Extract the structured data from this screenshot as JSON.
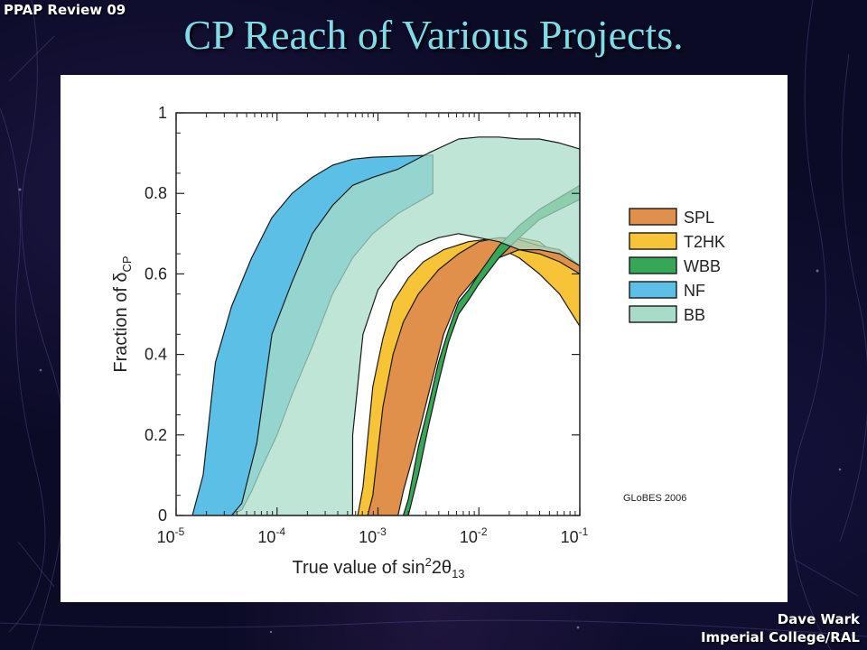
{
  "header": {
    "corner_label": "PPAP Review 09",
    "title": "CP Reach of Various Projects."
  },
  "footer": {
    "line1": "Dave Wark",
    "line2": "Imperial College/RAL"
  },
  "chart_data": {
    "type": "area",
    "title": "",
    "xlabel_prefix": "True value of sin",
    "xlabel_sup": "2",
    "xlabel_mid": "2θ",
    "xlabel_sub": "13",
    "ylabel_prefix": "Fraction of δ",
    "ylabel_sub": "CP",
    "x_scale": "log",
    "xlim": [
      1e-05,
      0.1
    ],
    "ylim": [
      0,
      1
    ],
    "x_tick_exponents": [
      "-5",
      "-4",
      "-3",
      "-2",
      "-1"
    ],
    "x_tick_base": "10",
    "y_ticks": [
      "0",
      "0.2",
      "0.4",
      "0.6",
      "0.8",
      "1"
    ],
    "credit": "GLoBES 2006",
    "legend_position": "right",
    "legend": [
      {
        "name": "SPL",
        "color": "#e0904a"
      },
      {
        "name": "T2HK",
        "color": "#f7c437"
      },
      {
        "name": "WBB",
        "color": "#36a657"
      },
      {
        "name": "NF",
        "color": "#5bbfe6"
      },
      {
        "name": "BB",
        "color": "#a8dcc8"
      }
    ],
    "bands": [
      {
        "name": "NF",
        "color": "#5bbfe6",
        "opacity": 1,
        "upper": [
          [
            1.45e-05,
            0
          ],
          [
            1.85e-05,
            0.1
          ],
          [
            2.45e-05,
            0.38
          ],
          [
            3.55e-05,
            0.52
          ],
          [
            5.6e-05,
            0.64
          ],
          [
            8.9e-05,
            0.74
          ],
          [
            0.000141,
            0.8
          ],
          [
            0.000224,
            0.84
          ],
          [
            0.000355,
            0.87
          ],
          [
            0.000562,
            0.885
          ],
          [
            0.00089,
            0.89
          ],
          [
            0.0035,
            0.895
          ]
        ],
        "lower": [
          [
            0.0035,
            0.8
          ],
          [
            0.00158,
            0.75
          ],
          [
            0.00089,
            0.7
          ],
          [
            0.000562,
            0.64
          ],
          [
            0.000355,
            0.55
          ],
          [
            0.000224,
            0.42
          ],
          [
            0.000141,
            0.3
          ],
          [
            0.0001,
            0.2
          ],
          [
            7.1e-05,
            0.12
          ],
          [
            5.6e-05,
            0.06
          ],
          [
            4.5e-05,
            0.015
          ],
          [
            3.55e-05,
            0
          ]
        ]
      },
      {
        "name": "T2HK",
        "color": "#f7c437",
        "opacity": 1,
        "upper": [
          [
            0.00063,
            0
          ],
          [
            0.00071,
            0.07
          ],
          [
            0.00089,
            0.32
          ],
          [
            0.00112,
            0.44
          ],
          [
            0.00141,
            0.53
          ],
          [
            0.002,
            0.59
          ],
          [
            0.00282,
            0.63
          ],
          [
            0.00447,
            0.66
          ],
          [
            0.0079,
            0.68
          ],
          [
            0.0158,
            0.69
          ],
          [
            0.0251,
            0.69
          ],
          [
            0.0398,
            0.68
          ],
          [
            0.063,
            0.64
          ],
          [
            0.1,
            0.6
          ]
        ],
        "lower": [
          [
            0.1,
            0.47
          ],
          [
            0.063,
            0.55
          ],
          [
            0.0398,
            0.6
          ],
          [
            0.0251,
            0.64
          ],
          [
            0.0158,
            0.665
          ],
          [
            0.0112,
            0.66
          ],
          [
            0.0079,
            0.62
          ],
          [
            0.00562,
            0.56
          ],
          [
            0.00398,
            0.46
          ],
          [
            0.00282,
            0.3
          ],
          [
            0.002,
            0.16
          ],
          [
            0.00158,
            0.07
          ],
          [
            0.00138,
            0
          ]
        ]
      },
      {
        "name": "SPL",
        "color": "#e0904a",
        "opacity": 1,
        "upper": [
          [
            0.00079,
            0
          ],
          [
            0.00089,
            0.05
          ],
          [
            0.00112,
            0.27
          ],
          [
            0.00141,
            0.4
          ],
          [
            0.00178,
            0.48
          ],
          [
            0.00251,
            0.55
          ],
          [
            0.00398,
            0.61
          ],
          [
            0.0063,
            0.65
          ],
          [
            0.01,
            0.68
          ],
          [
            0.0158,
            0.69
          ],
          [
            0.0251,
            0.685
          ],
          [
            0.0398,
            0.67
          ],
          [
            0.063,
            0.66
          ],
          [
            0.1,
            0.62
          ]
        ],
        "lower": [
          [
            0.1,
            0.6
          ],
          [
            0.063,
            0.63
          ],
          [
            0.0398,
            0.65
          ],
          [
            0.0251,
            0.66
          ],
          [
            0.0158,
            0.64
          ],
          [
            0.01,
            0.6
          ],
          [
            0.0063,
            0.54
          ],
          [
            0.00447,
            0.45
          ],
          [
            0.00316,
            0.3
          ],
          [
            0.00224,
            0.15
          ],
          [
            0.00178,
            0.06
          ],
          [
            0.00158,
            0
          ]
        ]
      },
      {
        "name": "WBB",
        "color": "#36a657",
        "opacity": 1,
        "upper": [
          [
            0.00178,
            0
          ],
          [
            0.002,
            0.04
          ],
          [
            0.00251,
            0.17
          ],
          [
            0.00316,
            0.27
          ],
          [
            0.00398,
            0.38
          ],
          [
            0.005,
            0.46
          ],
          [
            0.0063,
            0.53
          ],
          [
            0.0079,
            0.56
          ],
          [
            0.01,
            0.6
          ],
          [
            0.0158,
            0.67
          ],
          [
            0.0251,
            0.72
          ],
          [
            0.0398,
            0.76
          ],
          [
            0.063,
            0.79
          ],
          [
            0.1,
            0.82
          ]
        ],
        "lower": [
          [
            0.1,
            0.785
          ],
          [
            0.063,
            0.76
          ],
          [
            0.0398,
            0.735
          ],
          [
            0.0251,
            0.69
          ],
          [
            0.0158,
            0.64
          ],
          [
            0.01,
            0.575
          ],
          [
            0.0079,
            0.535
          ],
          [
            0.0063,
            0.5
          ],
          [
            0.005,
            0.43
          ],
          [
            0.00398,
            0.33
          ],
          [
            0.00316,
            0.22
          ],
          [
            0.00251,
            0.1
          ],
          [
            0.002,
            0
          ]
        ]
      },
      {
        "name": "BB",
        "color": "#a8dcc8",
        "opacity": 0.75,
        "upper": [
          [
            3.55e-05,
            0
          ],
          [
            4.47e-05,
            0.03
          ],
          [
            6.31e-05,
            0.18
          ],
          [
            8.91e-05,
            0.45
          ],
          [
            0.000141,
            0.58
          ],
          [
            0.000224,
            0.7
          ],
          [
            0.000355,
            0.77
          ],
          [
            0.000562,
            0.82
          ],
          [
            0.00089,
            0.84
          ],
          [
            0.00158,
            0.86
          ],
          [
            0.00316,
            0.9
          ],
          [
            0.0063,
            0.935
          ],
          [
            0.01,
            0.94
          ],
          [
            0.0158,
            0.94
          ],
          [
            0.0251,
            0.935
          ],
          [
            0.0398,
            0.935
          ],
          [
            0.063,
            0.925
          ],
          [
            0.1,
            0.91
          ]
        ],
        "lower": [
          [
            0.1,
            0.62
          ],
          [
            0.063,
            0.65
          ],
          [
            0.0398,
            0.66
          ],
          [
            0.0251,
            0.66
          ],
          [
            0.0158,
            0.68
          ],
          [
            0.01,
            0.69
          ],
          [
            0.0063,
            0.7
          ],
          [
            0.00398,
            0.69
          ],
          [
            0.00251,
            0.67
          ],
          [
            0.00158,
            0.63
          ],
          [
            0.001,
            0.56
          ],
          [
            0.00071,
            0.45
          ],
          [
            0.000562,
            0.2
          ],
          [
            0.00056,
            0
          ]
        ]
      }
    ]
  }
}
